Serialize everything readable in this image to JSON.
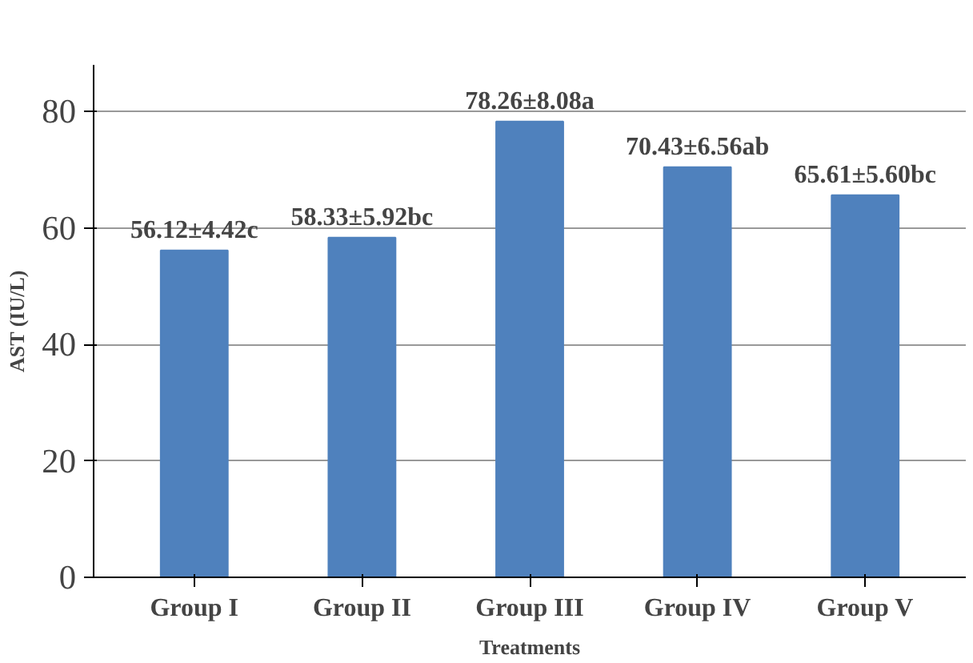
{
  "chart_data": {
    "type": "bar",
    "xlabel": "Treatments",
    "ylabel": "AST (IU/L)",
    "categories": [
      "Group I",
      "Group II",
      "Group III",
      "Group IV",
      "Group V"
    ],
    "values": [
      56.12,
      58.33,
      78.26,
      70.43,
      65.61
    ],
    "value_labels": [
      "56.12±4.42c",
      "58.33±5.92bc",
      "78.26±8.08a",
      "70.43±6.56ab",
      "65.61±5.60bc"
    ],
    "color": "#4f81bd",
    "ylim": [
      0,
      88
    ],
    "yticks": [
      0,
      20,
      40,
      60,
      80
    ],
    "grid": "y"
  }
}
